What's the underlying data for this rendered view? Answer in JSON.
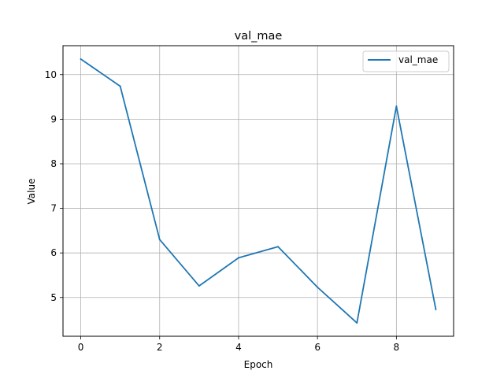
{
  "chart_data": {
    "type": "line",
    "title": "val_mae",
    "xlabel": "Epoch",
    "ylabel": "Value",
    "xlim": [
      -0.45,
      9.45
    ],
    "ylim": [
      4.13,
      10.65
    ],
    "xticks": [
      0,
      2,
      4,
      6,
      8
    ],
    "yticks": [
      5,
      6,
      7,
      8,
      9,
      10
    ],
    "grid": true,
    "legend_position": "top-right",
    "series": [
      {
        "name": "val_mae",
        "color": "#1f77b4",
        "x": [
          0,
          1,
          2,
          3,
          4,
          5,
          6,
          7,
          8,
          9
        ],
        "y": [
          10.35,
          9.74,
          6.3,
          5.26,
          5.89,
          6.14,
          5.23,
          4.43,
          9.29,
          4.73
        ]
      }
    ]
  }
}
